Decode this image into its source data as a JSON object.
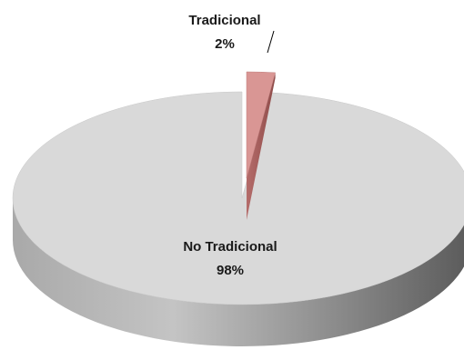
{
  "chart_data": {
    "type": "pie",
    "style": "3d-exploded",
    "slices": [
      {
        "label": "No Tradicional",
        "value": 98,
        "percent_label": "98%",
        "color": "#d9d9d9"
      },
      {
        "label": "Tradicional",
        "value": 2,
        "percent_label": "2%",
        "color": "#d99694",
        "exploded": true
      }
    ],
    "legend": "none"
  }
}
